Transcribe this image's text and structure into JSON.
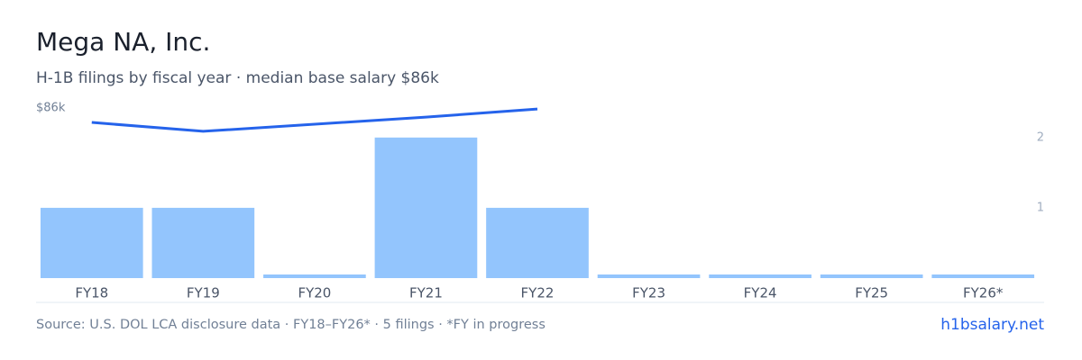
{
  "chart_data": {
    "type": "bar",
    "title": "Mega NA, Inc.",
    "subtitle": "H-1B filings by fiscal year · median base salary $86k",
    "categories": [
      "FY18",
      "FY19",
      "FY20",
      "FY21",
      "FY22",
      "FY23",
      "FY24",
      "FY25",
      "FY26*"
    ],
    "values": [
      1,
      1,
      0,
      2,
      1,
      0,
      0,
      0,
      0
    ],
    "color": "#93c5fd",
    "y2lim": [
      0,
      2.42
    ],
    "y2ticks": [
      1,
      2
    ],
    "line": {
      "categories": [
        "FY18",
        "FY19",
        "FY21",
        "FY22"
      ],
      "values": [
        78700,
        74200,
        81400,
        85500
      ],
      "color": "#2563eb"
    },
    "ylim": [
      0,
      86000
    ],
    "yticks": [
      {
        "value": 86000,
        "label": "$86k"
      }
    ]
  },
  "footer": {
    "source": "Source: U.S. DOL LCA disclosure data · FY18–FY26* · 5 filings · *FY in progress",
    "link": "h1bsalary.net"
  }
}
